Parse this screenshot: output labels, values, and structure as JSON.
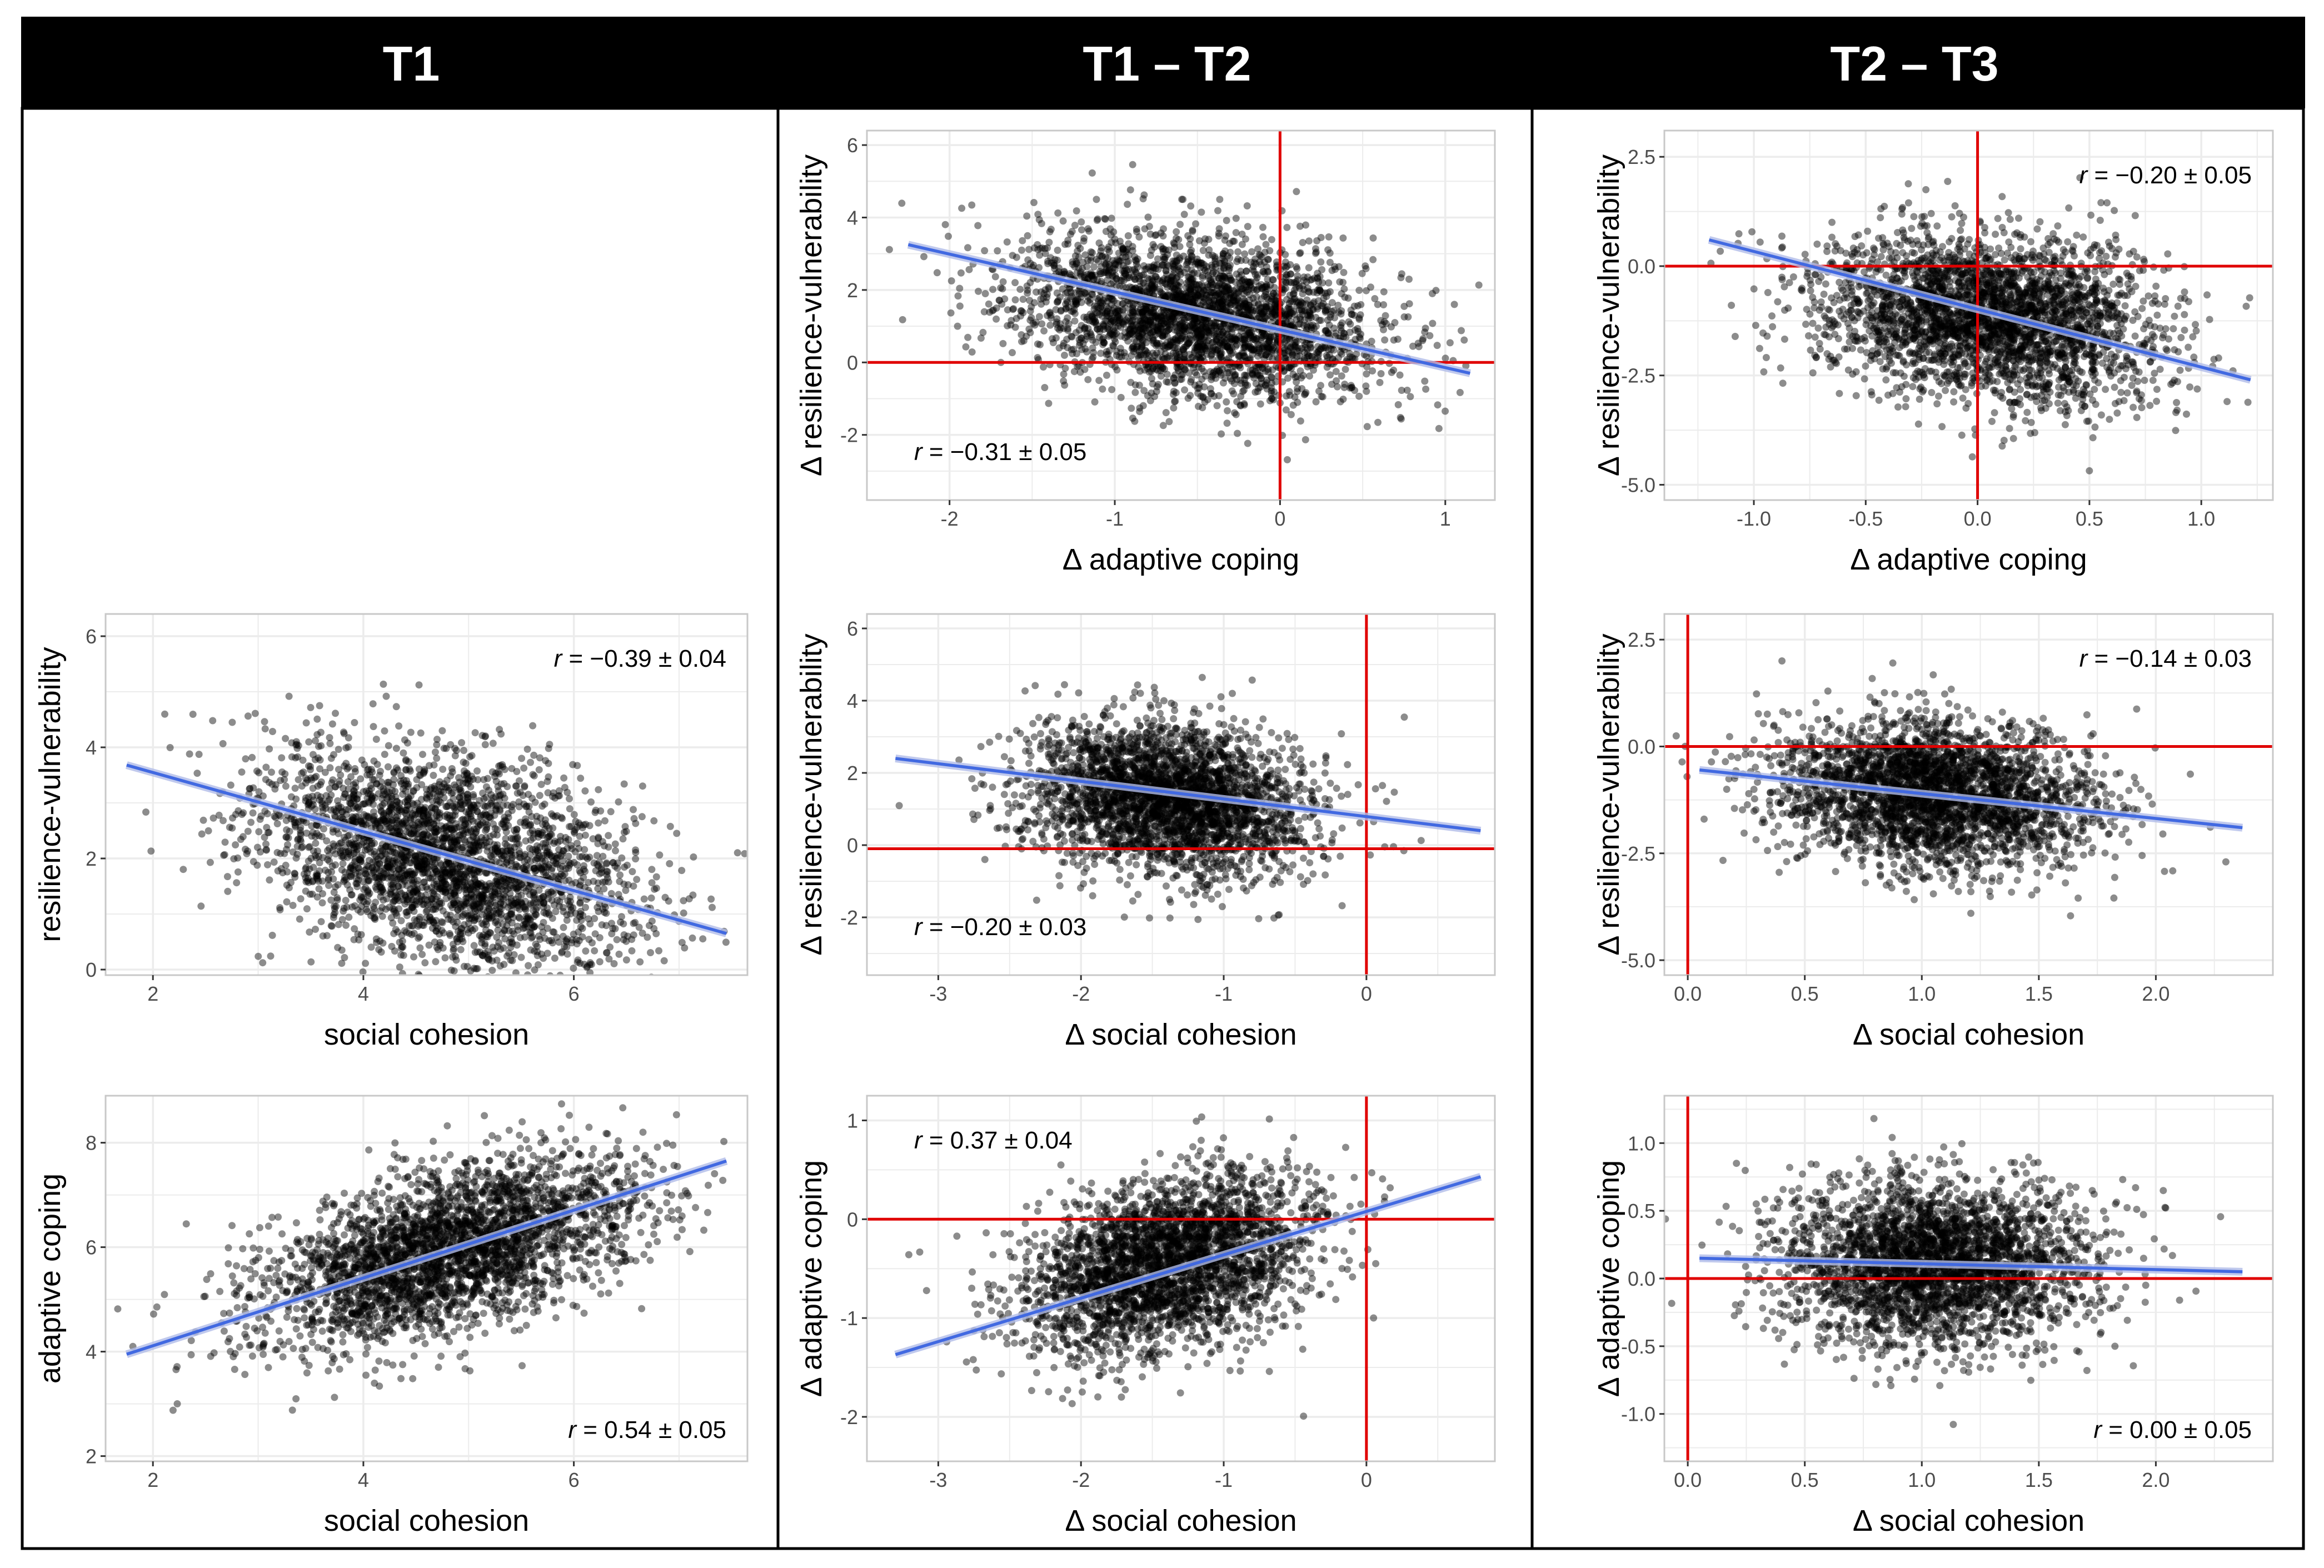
{
  "columns": [
    "T1",
    "T1 – T2",
    "T2 – T3"
  ],
  "colors": {
    "header_bg": "#000000",
    "header_text": "#ffffff",
    "point": "#000000",
    "fit_line": "#4169e1",
    "fit_band": "#b0bbe8",
    "zero_line": "#e00000",
    "panel_border": "#c8c8c8",
    "grid": "#ececec"
  },
  "chart_data": [
    {
      "id": "t1-rv-sc",
      "type": "scatter",
      "xlabel": "social cohesion",
      "ylabel": "resilience-vulnerability",
      "xlim": [
        1.55,
        7.65
      ],
      "ylim": [
        -0.1,
        6.4
      ],
      "xticks": [
        2,
        4,
        6
      ],
      "yticks": [
        0,
        2,
        4,
        6
      ],
      "xtick_labels": [
        "2",
        "4",
        "6"
      ],
      "ytick_labels": [
        "0",
        "2",
        "4",
        "6"
      ],
      "center": [
        4.8,
        2.0
      ],
      "spread": [
        0.9,
        1.0
      ],
      "corr": -0.39,
      "n": 3000,
      "fit": {
        "x": [
          1.75,
          7.45
        ],
        "y": [
          3.68,
          0.65
        ]
      },
      "annotation": {
        "r": "r",
        "text": " = −0.39 ± 0.04",
        "pos": "top-right"
      }
    },
    {
      "id": "t1-ac-sc",
      "type": "scatter",
      "xlabel": "social cohesion",
      "ylabel": "adaptive coping",
      "xlim": [
        1.55,
        7.65
      ],
      "ylim": [
        1.9,
        8.9
      ],
      "xticks": [
        2,
        4,
        6
      ],
      "yticks": [
        2,
        4,
        6,
        8
      ],
      "xtick_labels": [
        "2",
        "4",
        "6"
      ],
      "ytick_labels": [
        "2",
        "4",
        "6",
        "8"
      ],
      "center": [
        4.8,
        5.9
      ],
      "spread": [
        0.9,
        0.9
      ],
      "corr": 0.54,
      "n": 3000,
      "fit": {
        "x": [
          1.75,
          7.45
        ],
        "y": [
          3.95,
          7.65
        ]
      },
      "annotation": {
        "r": "r",
        "text": " = 0.54 ± 0.05",
        "pos": "bottom-right"
      }
    },
    {
      "id": "t12-rv-ac",
      "type": "scatter",
      "xlabel": "Δ adaptive coping",
      "ylabel": "Δ resilience-vulnerability",
      "xlim": [
        -2.5,
        1.3
      ],
      "ylim": [
        -3.8,
        6.4
      ],
      "xticks": [
        -2,
        -1,
        0,
        1
      ],
      "yticks": [
        -2,
        0,
        2,
        4,
        6
      ],
      "xtick_labels": [
        "-2",
        "-1",
        "0",
        "1"
      ],
      "ytick_labels": [
        "-2",
        "0",
        "2",
        "4",
        "6"
      ],
      "zero_lines": {
        "x": 0,
        "y": 0
      },
      "center": [
        -0.5,
        1.3
      ],
      "spread": [
        0.55,
        1.15
      ],
      "corr": -0.31,
      "n": 3000,
      "fit": {
        "x": [
          -2.25,
          1.15
        ],
        "y": [
          3.25,
          -0.3
        ]
      },
      "annotation": {
        "r": "r",
        "text": " = −0.31 ± 0.05",
        "pos": "bottom-left"
      }
    },
    {
      "id": "t12-rv-sc",
      "type": "scatter",
      "xlabel": "Δ social cohesion",
      "ylabel": "Δ resilience-vulnerability",
      "xlim": [
        -3.5,
        0.9
      ],
      "ylim": [
        -3.6,
        6.4
      ],
      "xticks": [
        -3,
        -2,
        -1,
        0
      ],
      "yticks": [
        -2,
        0,
        2,
        4,
        6
      ],
      "xtick_labels": [
        "-3",
        "-2",
        "-1",
        "0"
      ],
      "ytick_labels": [
        "-2",
        "0",
        "2",
        "4",
        "6"
      ],
      "zero_lines": {
        "x": 0,
        "y": -0.1
      },
      "center": [
        -1.4,
        1.3
      ],
      "spread": [
        0.5,
        1.05
      ],
      "corr": -0.2,
      "n": 3000,
      "fit": {
        "x": [
          -3.3,
          0.8
        ],
        "y": [
          2.4,
          0.4
        ]
      },
      "annotation": {
        "r": "r",
        "text": " = −0.20 ± 0.03",
        "pos": "bottom-left"
      }
    },
    {
      "id": "t12-ac-sc",
      "type": "scatter",
      "xlabel": "Δ social cohesion",
      "ylabel": "Δ adaptive coping",
      "xlim": [
        -3.5,
        0.9
      ],
      "ylim": [
        -2.45,
        1.25
      ],
      "xticks": [
        -3,
        -2,
        -1,
        0
      ],
      "yticks": [
        -2,
        -1,
        0,
        1
      ],
      "xtick_labels": [
        "-3",
        "-2",
        "-1",
        "0"
      ],
      "ytick_labels": [
        "-2",
        "-1",
        "0",
        "1"
      ],
      "zero_lines": {
        "x": 0,
        "y": 0
      },
      "center": [
        -1.4,
        -0.45
      ],
      "spread": [
        0.5,
        0.45
      ],
      "corr": 0.37,
      "n": 3000,
      "fit": {
        "x": [
          -3.3,
          0.8
        ],
        "y": [
          -1.37,
          0.43
        ]
      },
      "annotation": {
        "r": "r",
        "text": " = 0.37 ± 0.04",
        "pos": "top-left"
      }
    },
    {
      "id": "t23-rv-ac",
      "type": "scatter",
      "xlabel": "Δ adaptive coping",
      "ylabel": "Δ resilience-vulnerability",
      "xlim": [
        -1.4,
        1.32
      ],
      "ylim": [
        -5.35,
        3.1
      ],
      "xticks": [
        -1.0,
        -0.5,
        0.0,
        0.5,
        1.0
      ],
      "yticks": [
        -5.0,
        -2.5,
        0.0,
        2.5
      ],
      "xtick_labels": [
        "-1.0",
        "-0.5",
        "0.0",
        "0.5",
        "1.0"
      ],
      "ytick_labels": [
        "-5.0",
        "-2.5",
        "0.0",
        "2.5"
      ],
      "zero_lines": {
        "x": 0,
        "y": 0
      },
      "center": [
        0.05,
        -1.15
      ],
      "spread": [
        0.38,
        0.95
      ],
      "corr": -0.2,
      "n": 3000,
      "fit": {
        "x": [
          -1.2,
          1.22
        ],
        "y": [
          0.6,
          -2.6
        ]
      },
      "annotation": {
        "r": "r",
        "text": " = −0.20 ± 0.05",
        "pos": "top-right"
      }
    },
    {
      "id": "t23-rv-sc",
      "type": "scatter",
      "xlabel": "Δ social cohesion",
      "ylabel": "Δ resilience-vulnerability",
      "xlim": [
        -0.1,
        2.5
      ],
      "ylim": [
        -5.35,
        3.1
      ],
      "xticks": [
        0.0,
        0.5,
        1.0,
        1.5,
        2.0
      ],
      "yticks": [
        -5.0,
        -2.5,
        0.0,
        2.5
      ],
      "xtick_labels": [
        "0.0",
        "0.5",
        "1.0",
        "1.5",
        "2.0"
      ],
      "ytick_labels": [
        "-5.0",
        "-2.5",
        "0.0",
        "2.5"
      ],
      "zero_lines": {
        "x": 0,
        "y": 0
      },
      "center": [
        1.05,
        -1.1
      ],
      "spread": [
        0.33,
        0.85
      ],
      "corr": -0.14,
      "n": 3000,
      "fit": {
        "x": [
          0.05,
          2.37
        ],
        "y": [
          -0.55,
          -1.9
        ]
      },
      "annotation": {
        "r": "r",
        "text": " = −0.14 ± 0.03",
        "pos": "top-right"
      }
    },
    {
      "id": "t23-ac-sc",
      "type": "scatter",
      "xlabel": "Δ social cohesion",
      "ylabel": "Δ adaptive coping",
      "xlim": [
        -0.1,
        2.5
      ],
      "ylim": [
        -1.35,
        1.35
      ],
      "xticks": [
        0.0,
        0.5,
        1.0,
        1.5,
        2.0
      ],
      "yticks": [
        -1.0,
        -0.5,
        0.0,
        0.5,
        1.0
      ],
      "xtick_labels": [
        "0.0",
        "0.5",
        "1.0",
        "1.5",
        "2.0"
      ],
      "ytick_labels": [
        "-1.0",
        "-0.5",
        "0.0",
        "0.5",
        "1.0"
      ],
      "zero_lines": {
        "x": 0,
        "y": 0
      },
      "center": [
        1.05,
        0.1
      ],
      "spread": [
        0.33,
        0.3
      ],
      "corr": 0.0,
      "n": 3000,
      "fit": {
        "x": [
          0.05,
          2.37
        ],
        "y": [
          0.15,
          0.05
        ]
      },
      "annotation": {
        "r": "r",
        "text": " = 0.00 ± 0.05",
        "pos": "bottom-right"
      }
    }
  ]
}
